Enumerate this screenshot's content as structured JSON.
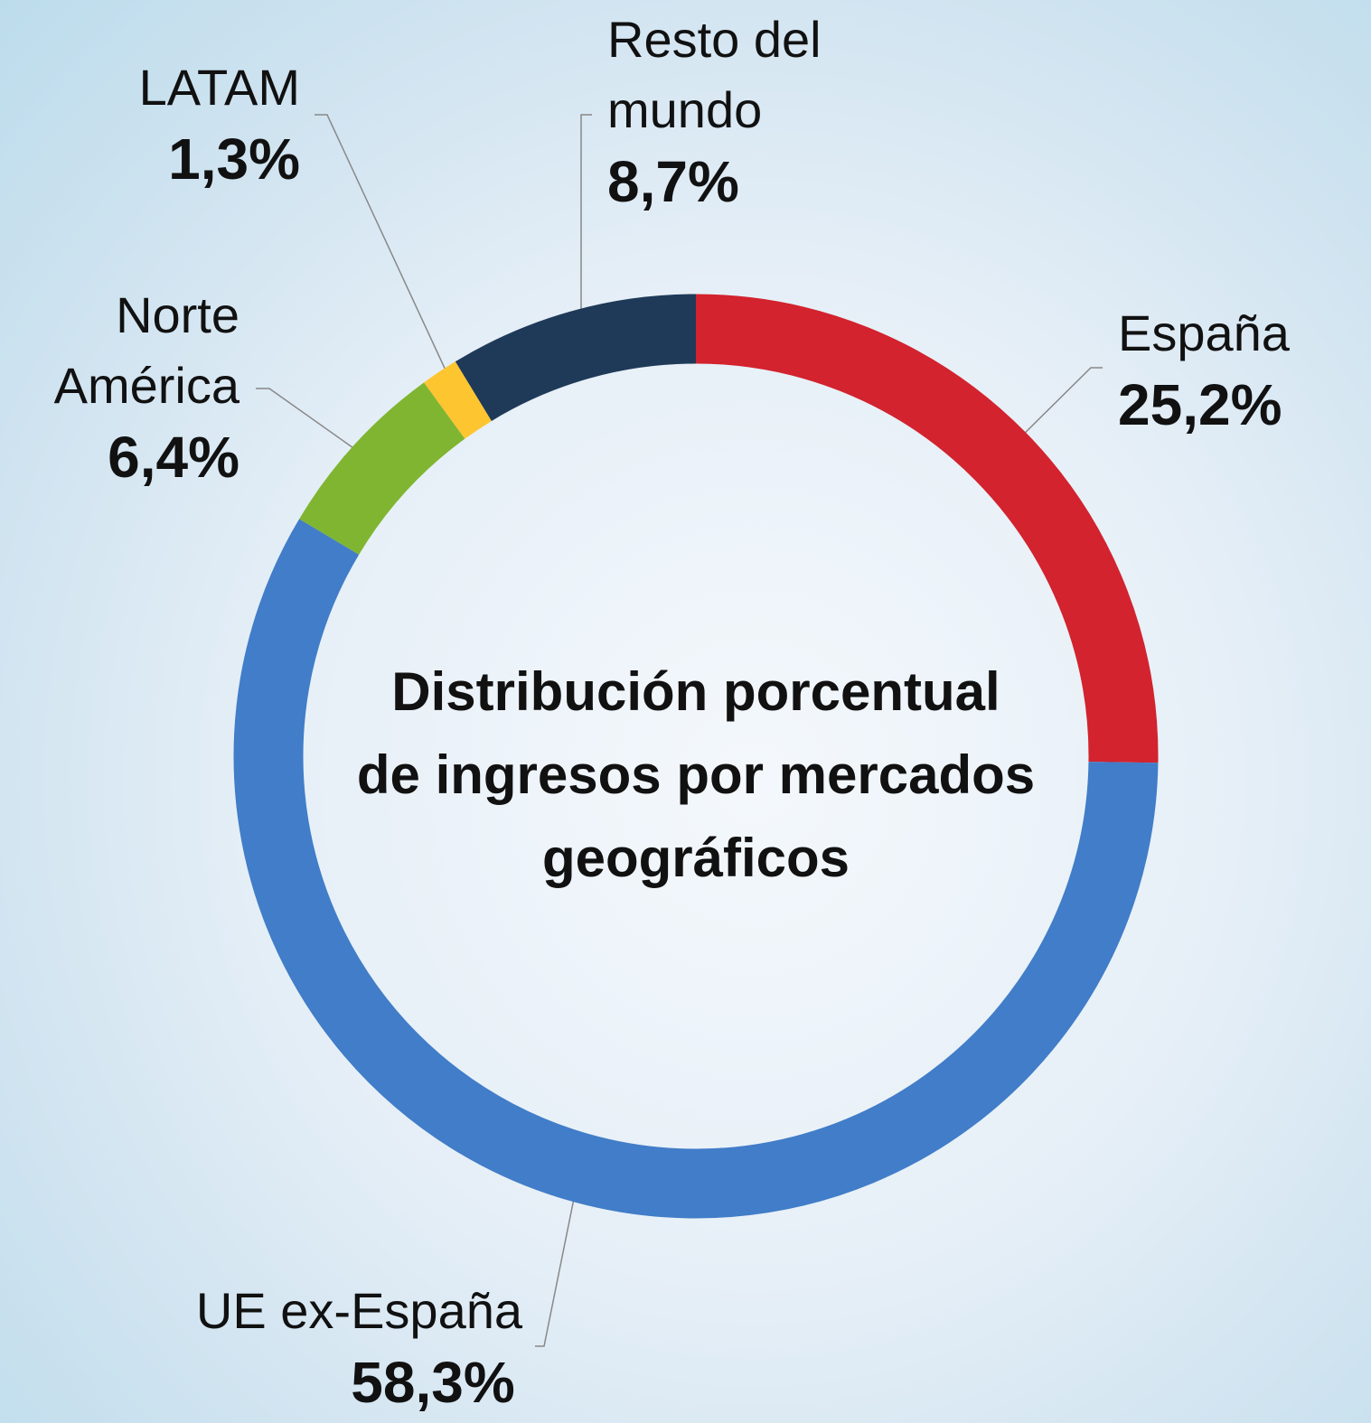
{
  "chart_data": {
    "type": "donut",
    "title": "Distribución porcentual de ingresos por mercados geográficos",
    "categories": [
      "España",
      "UE ex-España",
      "Norte América",
      "LATAM",
      "Resto del mundo"
    ],
    "values": [
      25.2,
      58.3,
      6.4,
      1.3,
      8.7
    ],
    "value_labels": [
      "25,2%",
      "58,3%",
      "6,4%",
      "1,3%",
      "8,7%"
    ],
    "colors": [
      "#d2232e",
      "#417dc8",
      "#80b531",
      "#fdc52f",
      "#1f3a58"
    ]
  }
}
